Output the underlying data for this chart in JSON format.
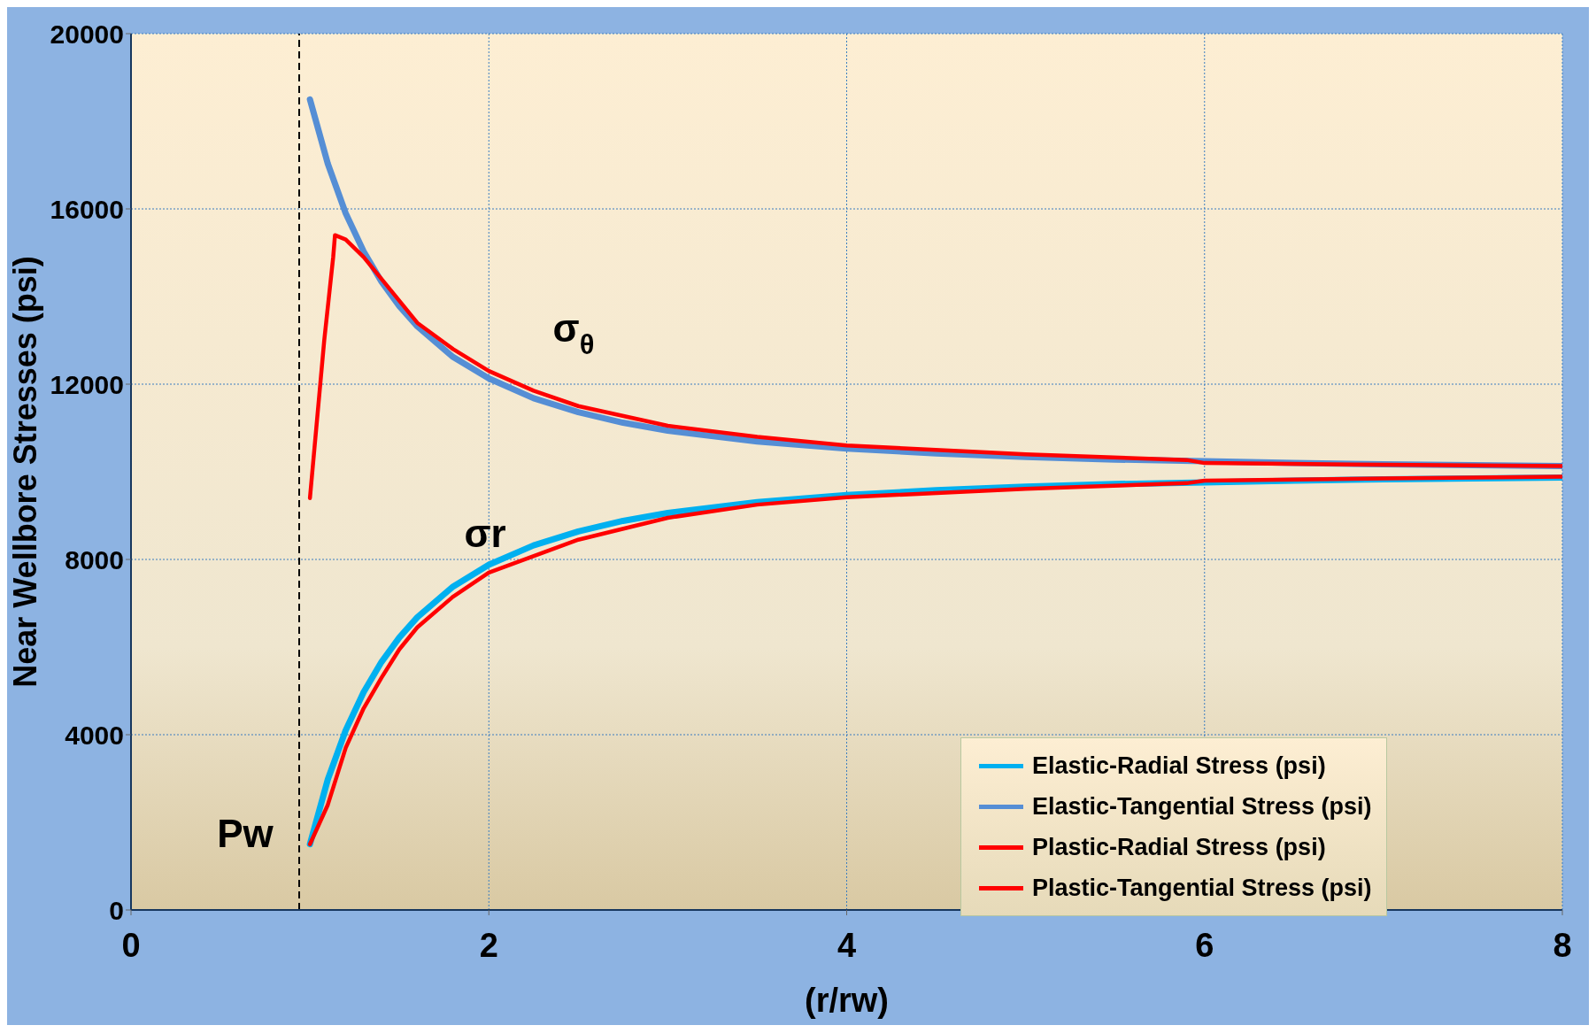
{
  "chart_data": {
    "type": "line",
    "xlabel": "(r/rw)",
    "ylabel": "Near Wellbore  Stresses (psi)",
    "xlim": [
      0,
      8
    ],
    "xticks": [
      0,
      2,
      4,
      6,
      8
    ],
    "ylim": [
      0,
      20000
    ],
    "yticks": [
      0,
      4000,
      8000,
      12000,
      16000,
      20000
    ],
    "grid": true,
    "legend": "bottom right",
    "marker": "none",
    "line_style": "solid",
    "series": [
      {
        "name": "Elastic-Radial Stress (psi)",
        "color": "#00b0f0",
        "x": [
          1,
          1.1,
          1.2,
          1.3,
          1.4,
          1.5,
          1.6,
          1.8,
          2,
          2.25,
          2.5,
          2.75,
          3,
          3.5,
          4,
          4.5,
          5,
          5.5,
          6,
          6.5,
          7,
          7.5,
          8
        ],
        "values": [
          1500,
          2980,
          4100,
          4970,
          5660,
          6220,
          6680,
          7380,
          7880,
          8320,
          8640,
          8880,
          9060,
          9310,
          9470,
          9580,
          9660,
          9720,
          9760,
          9800,
          9830,
          9850,
          9870
        ]
      },
      {
        "name": "Elastic-Tangential Stress (psi)",
        "color": "#558ed5",
        "x": [
          1,
          1.1,
          1.2,
          1.3,
          1.4,
          1.5,
          1.6,
          1.8,
          2,
          2.25,
          2.5,
          2.75,
          3,
          3.5,
          4,
          4.5,
          5,
          5.5,
          6,
          6.5,
          7,
          7.5,
          8
        ],
        "values": [
          18500,
          17030,
          15900,
          15030,
          14340,
          13780,
          13320,
          12620,
          12130,
          11680,
          11360,
          11120,
          10940,
          10690,
          10530,
          10420,
          10340,
          10280,
          10240,
          10200,
          10170,
          10150,
          10130
        ]
      },
      {
        "name": "Plastic-Radial Stress (psi)",
        "color": "#ff0000",
        "x": [
          1,
          1.1,
          1.2,
          1.3,
          1.4,
          1.5,
          1.6,
          1.8,
          2,
          2.5,
          3,
          3.5,
          4,
          5,
          5.9,
          6,
          7,
          8
        ],
        "values": [
          1500,
          2400,
          3700,
          4600,
          5300,
          5950,
          6450,
          7150,
          7700,
          8450,
          8950,
          9250,
          9420,
          9610,
          9740,
          9800,
          9850,
          9890
        ]
      },
      {
        "name": "Plastic-Tangential Stress (psi)",
        "color": "#ff0000",
        "x": [
          1,
          1.08,
          1.13,
          1.14,
          1.2,
          1.3,
          1.4,
          1.6,
          1.8,
          2,
          2.25,
          2.5,
          3,
          3.5,
          4,
          5,
          5.9,
          6,
          7,
          8
        ],
        "values": [
          9400,
          13000,
          14900,
          15400,
          15300,
          14900,
          14400,
          13400,
          12800,
          12300,
          11850,
          11500,
          11050,
          10800,
          10600,
          10400,
          10270,
          10200,
          10160,
          10130
        ]
      }
    ],
    "ref_lines": [
      {
        "axis": "x",
        "value": 0.94,
        "color": "#000000",
        "line_style": "dashed"
      }
    ],
    "annotations": [
      "σ$_{θ}$",
      "σr",
      "Pw"
    ]
  }
}
